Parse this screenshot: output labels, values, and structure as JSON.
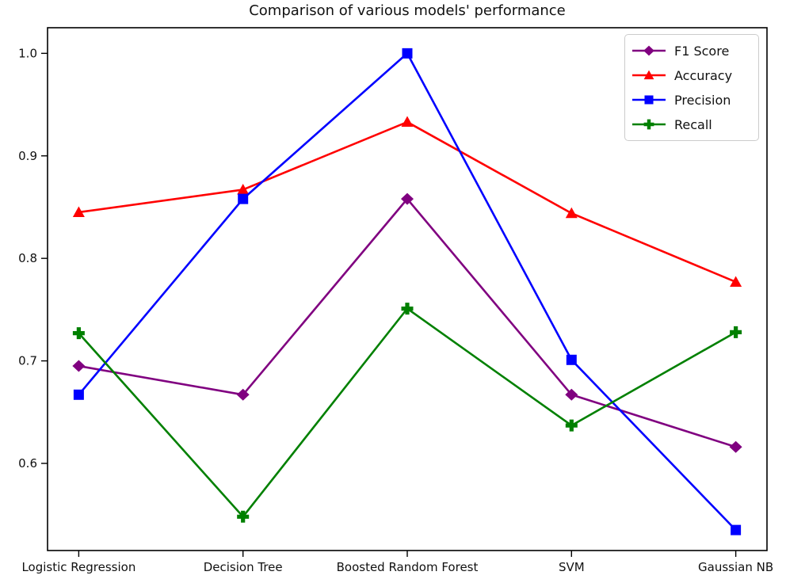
{
  "title": "Comparison of various models' performance",
  "chart_data": {
    "type": "line",
    "title": "Comparison of various models' performance",
    "xlabel": "",
    "ylabel": "",
    "categories": [
      "Logistic Regression",
      "Decision Tree",
      "Boosted Random Forest",
      "SVM",
      "Gaussian NB"
    ],
    "series": [
      {
        "name": "F1 Score",
        "color": "#800080",
        "marker": "diamond",
        "values": [
          0.695,
          0.667,
          0.858,
          0.667,
          0.616
        ]
      },
      {
        "name": "Accuracy",
        "color": "#ff0000",
        "marker": "triangle",
        "values": [
          0.845,
          0.867,
          0.933,
          0.844,
          0.777
        ]
      },
      {
        "name": "Precision",
        "color": "#0000ff",
        "marker": "square",
        "values": [
          0.667,
          0.858,
          1.0,
          0.701,
          0.535
        ]
      },
      {
        "name": "Recall",
        "color": "#008000",
        "marker": "plus",
        "values": [
          0.727,
          0.548,
          0.751,
          0.637,
          0.728
        ]
      }
    ],
    "yticks": [
      {
        "label": "1.0",
        "value": 1.0
      },
      {
        "label": "0.9",
        "value": 0.9
      },
      {
        "label": "0.8",
        "value": 0.8
      },
      {
        "label": "0.7",
        "value": 0.7
      },
      {
        "label": "0.6",
        "value": 0.6
      }
    ],
    "ylim": [
      0.515,
      1.025
    ],
    "xlim": [
      -0.19,
      4.19
    ],
    "grid": false,
    "legend_position": "upper right",
    "axis_color": "#000000"
  }
}
